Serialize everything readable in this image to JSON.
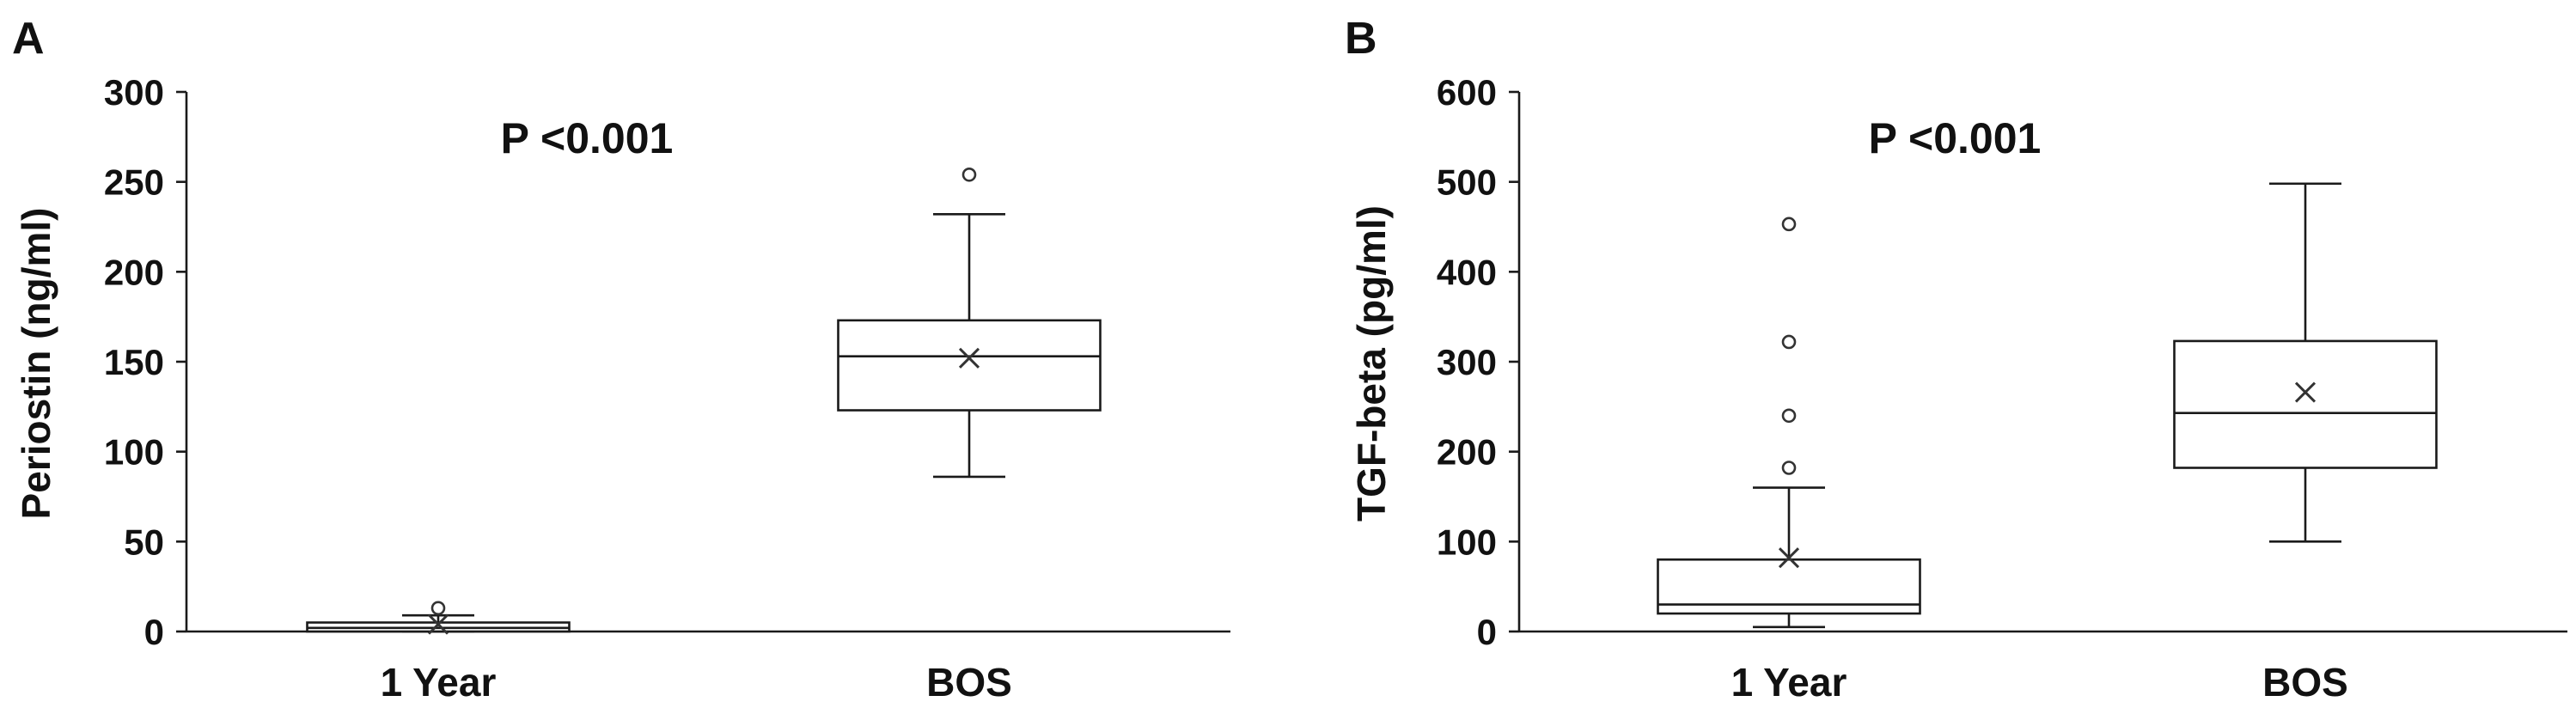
{
  "chart_data": [
    {
      "panel": "A",
      "type": "box",
      "annotation": "P <0.001",
      "ylabel": "Periostin (ng/ml)",
      "ylim": [
        0,
        300
      ],
      "yticks": [
        "0",
        "50",
        "100",
        "150",
        "200",
        "250",
        "300"
      ],
      "categories": [
        "1 Year",
        "BOS"
      ],
      "boxes": [
        {
          "category": "1 Year",
          "whisker_low": 0,
          "q1": 0,
          "median": 2,
          "q3": 5,
          "whisker_high": 9,
          "mean": 4,
          "outliers": [
            13
          ]
        },
        {
          "category": "BOS",
          "whisker_low": 86,
          "q1": 123,
          "median": 153,
          "q3": 173,
          "whisker_high": 232,
          "mean": 152,
          "outliers": [
            254
          ]
        }
      ]
    },
    {
      "panel": "B",
      "type": "box",
      "annotation": "P <0.001",
      "ylabel": "TGF-beta (pg/ml)",
      "ylim": [
        0,
        600
      ],
      "yticks": [
        "0",
        "100",
        "200",
        "300",
        "400",
        "500",
        "600"
      ],
      "categories": [
        "1 Year",
        "BOS"
      ],
      "boxes": [
        {
          "category": "1 Year",
          "whisker_low": 5,
          "q1": 20,
          "median": 30,
          "q3": 80,
          "whisker_high": 160,
          "mean": 82,
          "outliers": [
            182,
            240,
            322,
            453
          ]
        },
        {
          "category": "BOS",
          "whisker_low": 100,
          "q1": 182,
          "median": 243,
          "q3": 323,
          "whisker_high": 498,
          "mean": 266,
          "outliers": []
        }
      ]
    }
  ]
}
